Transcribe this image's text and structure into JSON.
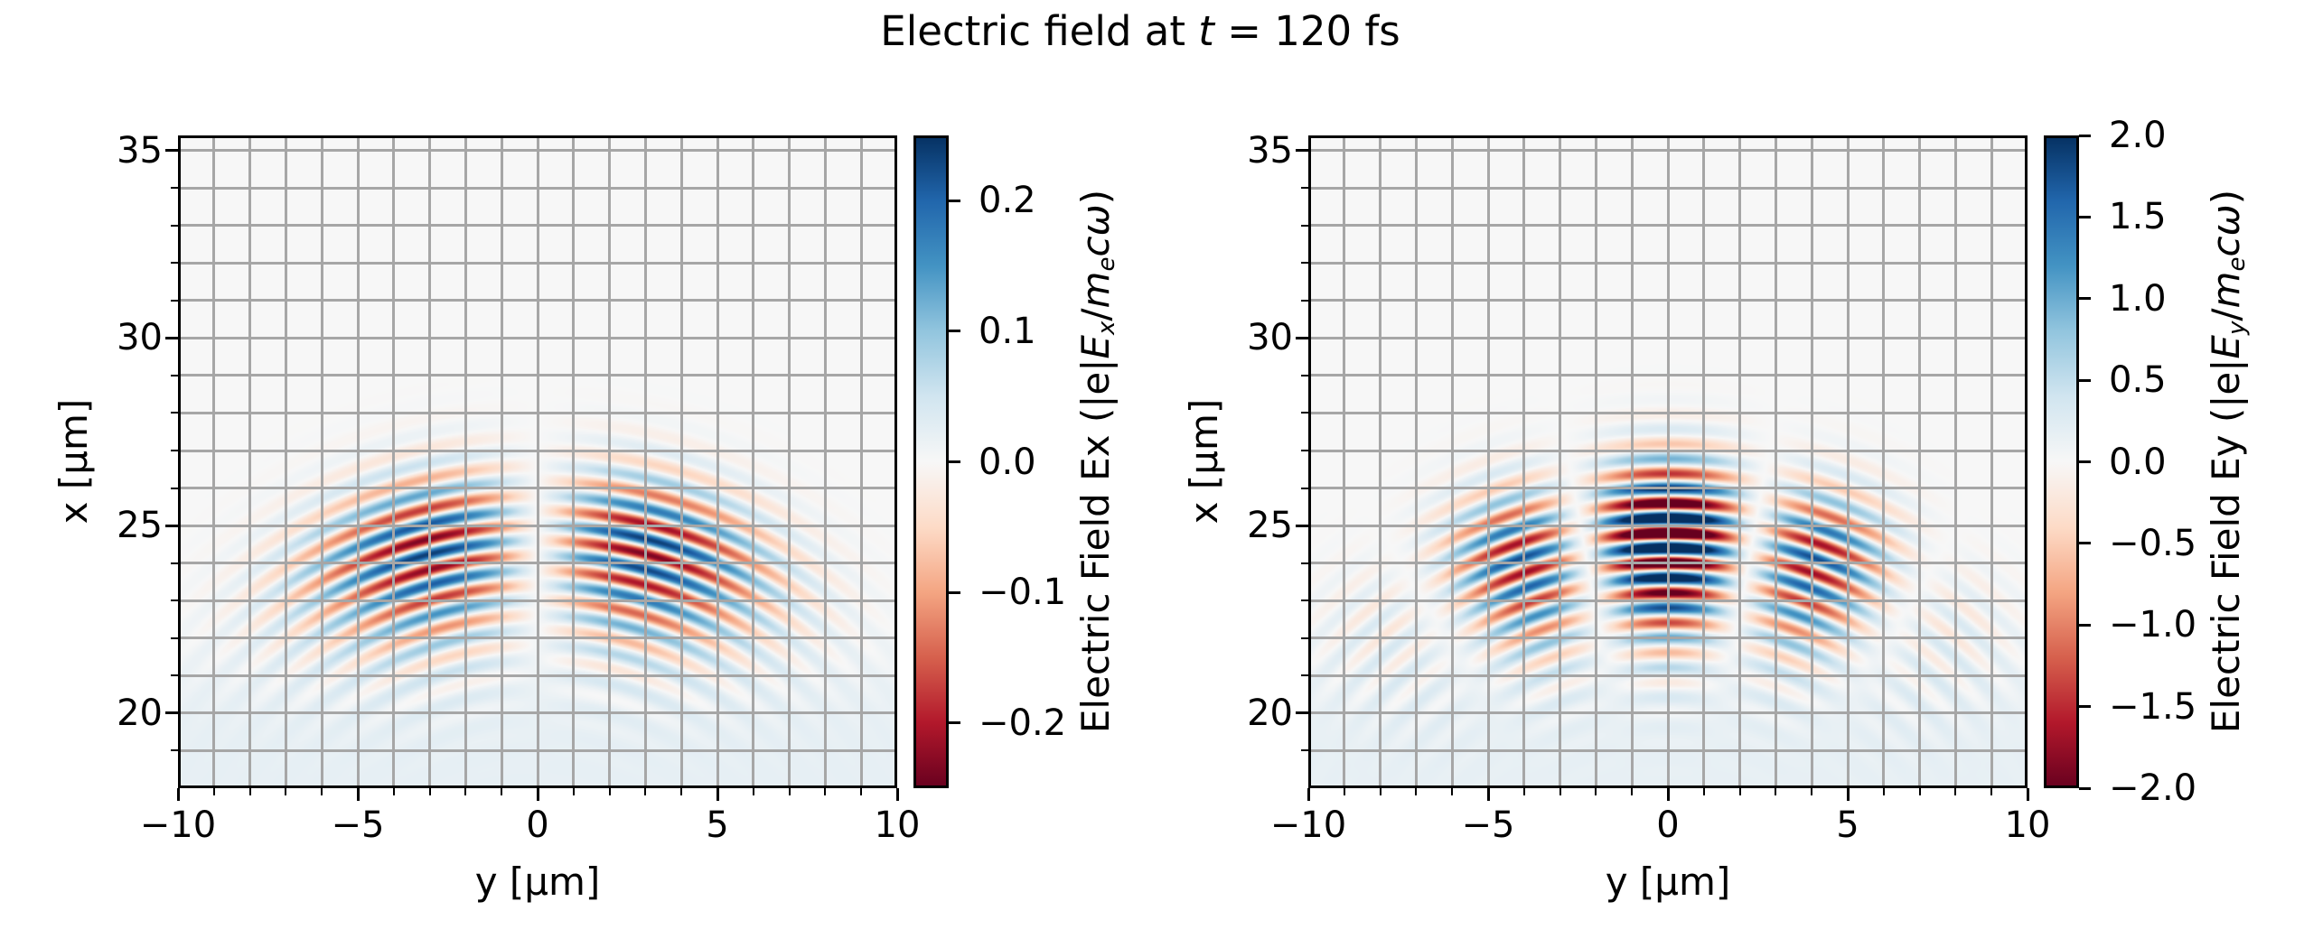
{
  "figure": {
    "background": "#ffffff",
    "title_parts": [
      {
        "t": "Electric field at ",
        "s": "p"
      },
      {
        "t": "t",
        "s": "i"
      },
      {
        "t": " = 120 fs",
        "s": "p"
      }
    ],
    "time_shown": "120 fs"
  },
  "colormap": {
    "name": "RdBu",
    "stops": [
      "#67001f",
      "#b2182b",
      "#d6604d",
      "#f4a582",
      "#fddbc7",
      "#f7f7f7",
      "#d1e5f0",
      "#92c5de",
      "#4393c3",
      "#2166ac",
      "#053061"
    ]
  },
  "grid_color": "#a6a6a6",
  "chart_data": [
    {
      "type": "heatmap",
      "component": "Ex",
      "xlabel": "y [μm]",
      "ylabel": "x [μm]",
      "x_range": [
        -10,
        10
      ],
      "y_range": [
        18,
        35.4
      ],
      "x_major_ticks": [
        -10,
        -5,
        0,
        5,
        10
      ],
      "x_major_labels": [
        "−10",
        "−5",
        "0",
        "5",
        "10"
      ],
      "y_major_ticks": [
        20,
        25,
        30,
        35
      ],
      "y_major_labels": [
        "20",
        "25",
        "30",
        "35"
      ],
      "minor_tick_step": 1,
      "grid": true,
      "colorbar": {
        "vmin": -0.25,
        "vmax": 0.25,
        "ticks": [
          0.2,
          0.1,
          0.0,
          -0.1,
          -0.2
        ],
        "tick_labels": [
          "0.2",
          "0.1",
          "0.0",
          "−0.1",
          "−0.2"
        ],
        "label_parts": [
          {
            "t": "Electric Field Ex (|e|",
            "s": "p"
          },
          {
            "t": "E",
            "s": "i"
          },
          {
            "t": "x",
            "s": "subi"
          },
          {
            "t": "/",
            "s": "p"
          },
          {
            "t": "m",
            "s": "i"
          },
          {
            "t": "e",
            "s": "subi"
          },
          {
            "t": "c",
            "s": "i"
          },
          {
            "t": "ω",
            "s": "i"
          },
          {
            "t": ")",
            "s": "p"
          }
        ]
      },
      "field_model": {
        "focus_x": 12,
        "wavelength": 0.8,
        "r0": 12.8,
        "sigma_trail": 2.6,
        "sigma_lead": 1.8,
        "amp": 1.6,
        "theta_sigma": 0.35,
        "angular": "sin_antisymmetric",
        "phase0": 0,
        "wash_amp": 0.022,
        "wash_edge": 21.3
      },
      "description": "Transverse component Ex of a focused laser pulse at t = 120 fs: two lobes antisymmetric about y = 0 (null stripe on axis), curved wavefronts with ~0.8 μm period centered near x ≈ 25 μm, peak |Ex| ≈ 0.25"
    },
    {
      "type": "heatmap",
      "component": "Ey",
      "xlabel": "y [μm]",
      "ylabel": "x [μm]",
      "x_range": [
        -10,
        10
      ],
      "y_range": [
        18,
        35.4
      ],
      "x_major_ticks": [
        -10,
        -5,
        0,
        5,
        10
      ],
      "x_major_labels": [
        "−10",
        "−5",
        "0",
        "5",
        "10"
      ],
      "y_major_ticks": [
        20,
        25,
        30,
        35
      ],
      "y_major_labels": [
        "20",
        "25",
        "30",
        "35"
      ],
      "minor_tick_step": 1,
      "grid": true,
      "colorbar": {
        "vmin": -2.0,
        "vmax": 2.0,
        "ticks": [
          2.0,
          1.5,
          1.0,
          0.5,
          0.0,
          -0.5,
          -1.0,
          -1.5,
          -2.0
        ],
        "tick_labels": [
          "2.0",
          "1.5",
          "1.0",
          "0.5",
          "0.0",
          "−0.5",
          "−1.0",
          "−1.5",
          "−2.0"
        ],
        "label_parts": [
          {
            "t": "Electric Field Ey (|e|",
            "s": "p"
          },
          {
            "t": "E",
            "s": "i"
          },
          {
            "t": "y",
            "s": "subi"
          },
          {
            "t": "/",
            "s": "p"
          },
          {
            "t": "m",
            "s": "i"
          },
          {
            "t": "e",
            "s": "subi"
          },
          {
            "t": "c",
            "s": "i"
          },
          {
            "t": "ω",
            "s": "i"
          },
          {
            "t": ")",
            "s": "p"
          }
        ]
      },
      "field_model": {
        "focus_x": 12,
        "wavelength": 0.8,
        "r0": 12.8,
        "sigma_trail": 2.6,
        "sigma_lead": 1.8,
        "amp": 3.2,
        "cos_freq": 8.5,
        "theta_sigma": 0.45,
        "angular": "cos_lobes",
        "phase0": 3.14159,
        "wash_amp": 0.17,
        "wash_edge": 21.3
      },
      "description": "Main polarization component Ey of the pulse: strong central lobe at y = 0 saturating the ±2.0 scale, out-of-phase side lobes near y ≈ ±5 μm, curved (diverging) wavefronts, peak |Ey| ≈ 2"
    }
  ]
}
